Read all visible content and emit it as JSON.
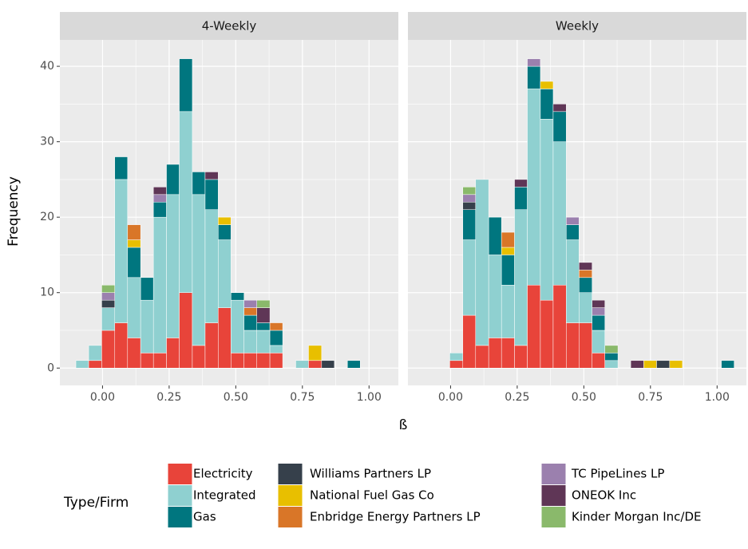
{
  "chart_data": {
    "type": "histogram",
    "xlabel": "ß",
    "ylabel": "Frequency",
    "legend_title": "Type/Firm",
    "facets": [
      "4-Weekly",
      "Weekly"
    ],
    "bins": [
      -0.1,
      -0.052,
      -0.003,
      0.046,
      0.094,
      0.143,
      0.191,
      0.24,
      0.288,
      0.337,
      0.385,
      0.434,
      0.482,
      0.531,
      0.579,
      0.628,
      0.676,
      0.725,
      0.773,
      0.822,
      0.87,
      0.919,
      0.967,
      1.016,
      1.064
    ],
    "xlim": [
      -0.16,
      1.11
    ],
    "xticks": [
      {
        "value": 0,
        "label": "0.00"
      },
      {
        "value": 0.25,
        "label": "0.25"
      },
      {
        "value": 0.5,
        "label": "0.50"
      },
      {
        "value": 0.75,
        "label": "0.75"
      },
      {
        "value": 1,
        "label": "1.00"
      }
    ],
    "ylim": [
      -2.3,
      43.5
    ],
    "yticks": [
      0,
      10,
      20,
      30,
      40
    ],
    "grid": true,
    "legend_position": "bottom",
    "series": [
      {
        "name": "Electricity",
        "color": "#e8443a",
        "values": [
          [
            0,
            1,
            5,
            6,
            4,
            2,
            2,
            4,
            10,
            3,
            6,
            8,
            2,
            2,
            2,
            2,
            0,
            0,
            1,
            0,
            0,
            0,
            0,
            0
          ],
          [
            0,
            0,
            1,
            7,
            3,
            4,
            4,
            3,
            11,
            9,
            11,
            6,
            6,
            2,
            0,
            0,
            0,
            0,
            0,
            0,
            0,
            0,
            0,
            0
          ]
        ]
      },
      {
        "name": "Integrated",
        "color": "#8fd0d0",
        "values": [
          [
            1,
            2,
            3,
            19,
            8,
            7,
            18,
            19,
            24,
            20,
            15,
            9,
            7,
            3,
            3,
            1,
            0,
            1,
            0,
            0,
            0,
            0,
            0,
            0
          ],
          [
            0,
            0,
            1,
            10,
            22,
            11,
            7,
            18,
            26,
            24,
            19,
            11,
            4,
            3,
            1,
            0,
            0,
            0,
            0,
            0,
            0,
            0,
            0,
            0
          ]
        ]
      },
      {
        "name": "Gas",
        "color": "#00767f",
        "values": [
          [
            0,
            0,
            0,
            3,
            4,
            3,
            2,
            4,
            7,
            3,
            4,
            2,
            1,
            2,
            1,
            2,
            0,
            0,
            0,
            0,
            0,
            1,
            0,
            0
          ],
          [
            0,
            0,
            0,
            4,
            0,
            5,
            4,
            3,
            3,
            4,
            4,
            2,
            2,
            2,
            1,
            0,
            0,
            0,
            0,
            0,
            0,
            0,
            0,
            1
          ]
        ]
      },
      {
        "name": "Williams Partners LP",
        "color": "#36404b",
        "values": [
          [
            0,
            0,
            1,
            0,
            0,
            0,
            0,
            0,
            0,
            0,
            0,
            0,
            0,
            0,
            0,
            0,
            0,
            0,
            0,
            1,
            0,
            0,
            0,
            0
          ],
          [
            0,
            0,
            0,
            1,
            0,
            0,
            0,
            0,
            0,
            0,
            0,
            0,
            0,
            0,
            0,
            0,
            0,
            0,
            1,
            0,
            0,
            0,
            0,
            0
          ]
        ]
      },
      {
        "name": "National Fuel Gas Co",
        "color": "#e8bf00",
        "values": [
          [
            0,
            0,
            0,
            0,
            1,
            0,
            0,
            0,
            0,
            0,
            0,
            1,
            0,
            0,
            0,
            0,
            0,
            0,
            2,
            0,
            0,
            0,
            0,
            0
          ],
          [
            0,
            0,
            0,
            0,
            0,
            0,
            1,
            0,
            0,
            1,
            0,
            0,
            0,
            0,
            0,
            0,
            0,
            1,
            0,
            1,
            0,
            0,
            0,
            0
          ]
        ]
      },
      {
        "name": "Enbridge Energy Partners LP",
        "color": "#d97628",
        "values": [
          [
            0,
            0,
            0,
            0,
            2,
            0,
            0,
            0,
            0,
            0,
            0,
            0,
            0,
            1,
            0,
            1,
            0,
            0,
            0,
            0,
            0,
            0,
            0,
            0
          ],
          [
            0,
            0,
            0,
            0,
            0,
            0,
            2,
            0,
            0,
            0,
            0,
            0,
            1,
            0,
            0,
            0,
            0,
            0,
            0,
            0,
            0,
            0,
            0,
            0
          ]
        ]
      },
      {
        "name": "TC PipeLines LP",
        "color": "#9b80ae",
        "values": [
          [
            0,
            0,
            1,
            0,
            0,
            0,
            1,
            0,
            0,
            0,
            0,
            0,
            0,
            1,
            0,
            0,
            0,
            0,
            0,
            0,
            0,
            0,
            0,
            0
          ],
          [
            0,
            0,
            0,
            1,
            0,
            0,
            0,
            0,
            1,
            0,
            0,
            1,
            0,
            1,
            0,
            0,
            0,
            0,
            0,
            0,
            0,
            0,
            0,
            0
          ]
        ]
      },
      {
        "name": "ONEOK Inc",
        "color": "#5f3656",
        "values": [
          [
            0,
            0,
            0,
            0,
            0,
            0,
            1,
            0,
            0,
            0,
            1,
            0,
            0,
            0,
            2,
            0,
            0,
            0,
            0,
            0,
            0,
            0,
            0,
            0
          ],
          [
            0,
            0,
            0,
            0,
            0,
            0,
            0,
            1,
            0,
            0,
            1,
            0,
            1,
            1,
            0,
            0,
            1,
            0,
            0,
            0,
            0,
            0,
            0,
            0
          ]
        ]
      },
      {
        "name": "Kinder Morgan Inc/DE",
        "color": "#8ab96b",
        "values": [
          [
            0,
            0,
            1,
            0,
            0,
            0,
            0,
            0,
            0,
            0,
            0,
            0,
            0,
            0,
            1,
            0,
            0,
            0,
            0,
            0,
            0,
            0,
            0,
            0
          ],
          [
            0,
            0,
            0,
            1,
            0,
            0,
            0,
            0,
            0,
            0,
            0,
            0,
            0,
            0,
            1,
            0,
            0,
            0,
            0,
            0,
            0,
            0,
            0,
            0
          ]
        ]
      }
    ]
  }
}
